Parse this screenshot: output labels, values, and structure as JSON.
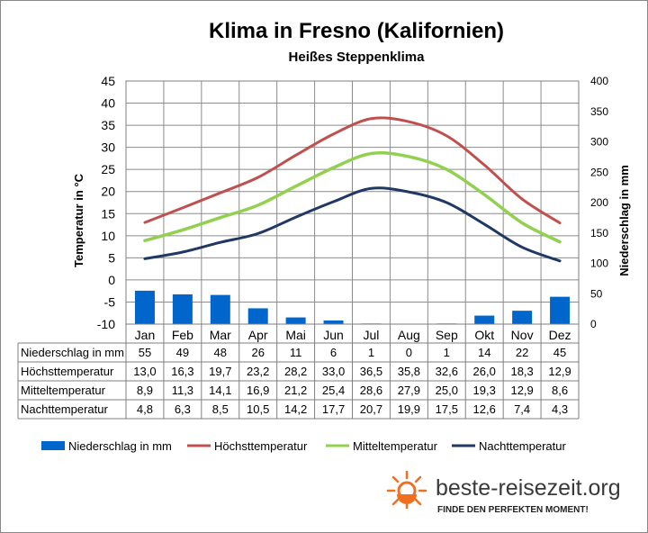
{
  "chart_data": {
    "type": "bar+line",
    "title": "Klima in Fresno (Kalifornien)",
    "subtitle": "Heißes Steppenklima",
    "ylabel_left": "Temperatur in °C",
    "ylabel_right": "Niederschlag in mm",
    "ylim_left": [
      -10,
      45
    ],
    "ylim_right": [
      0,
      400
    ],
    "yticks_left": [
      "45",
      "40",
      "35",
      "30",
      "25",
      "20",
      "15",
      "10",
      "5",
      "0",
      "-5",
      "-10"
    ],
    "yticks_right": [
      "400",
      "350",
      "300",
      "250",
      "200",
      "150",
      "100",
      "50",
      "0"
    ],
    "categories": [
      "Jan",
      "Feb",
      "Mar",
      "Apr",
      "Mai",
      "Jun",
      "Jul",
      "Aug",
      "Sep",
      "Okt",
      "Nov",
      "Dez"
    ],
    "series": [
      {
        "name": "Niederschlag in mm",
        "kind": "bar",
        "axis": "right",
        "color": "#0066cc",
        "values": [
          55,
          49,
          48,
          26,
          11,
          6,
          1,
          0,
          1,
          14,
          22,
          45
        ],
        "labels": [
          "55",
          "49",
          "48",
          "26",
          "11",
          "6",
          "1",
          "0",
          "1",
          "14",
          "22",
          "45"
        ]
      },
      {
        "name": "Höchsttemperatur",
        "kind": "line",
        "axis": "left",
        "color": "#c0504d",
        "values": [
          13.0,
          16.3,
          19.7,
          23.2,
          28.2,
          33.0,
          36.5,
          35.8,
          32.6,
          26.0,
          18.3,
          12.9
        ],
        "labels": [
          "13,0",
          "16,3",
          "19,7",
          "23,2",
          "28,2",
          "33,0",
          "36,5",
          "35,8",
          "32,6",
          "26,0",
          "18,3",
          "12,9"
        ]
      },
      {
        "name": "Mitteltemperatur",
        "kind": "line",
        "axis": "left",
        "color": "#92d050",
        "values": [
          8.9,
          11.3,
          14.1,
          16.9,
          21.2,
          25.4,
          28.6,
          27.9,
          25.0,
          19.3,
          12.9,
          8.6
        ],
        "labels": [
          "8,9",
          "11,3",
          "14,1",
          "16,9",
          "21,2",
          "25,4",
          "28,6",
          "27,9",
          "25,0",
          "19,3",
          "12,9",
          "8,6"
        ]
      },
      {
        "name": "Nachttemperatur",
        "kind": "line",
        "axis": "left",
        "color": "#1f3864",
        "values": [
          4.8,
          6.3,
          8.5,
          10.5,
          14.2,
          17.7,
          20.7,
          19.9,
          17.5,
          12.6,
          7.4,
          4.3
        ],
        "labels": [
          "4,8",
          "6,3",
          "8,5",
          "10,5",
          "14,2",
          "17,7",
          "20,7",
          "19,9",
          "17,5",
          "12,6",
          "7,4",
          "4,3"
        ]
      }
    ],
    "grid": true,
    "legend_position": "bottom"
  },
  "branding": {
    "name": "beste-reisezeit.org",
    "tagline": "FINDE DEN PERFEKTEN MOMENT!",
    "accent": "#f07020"
  }
}
